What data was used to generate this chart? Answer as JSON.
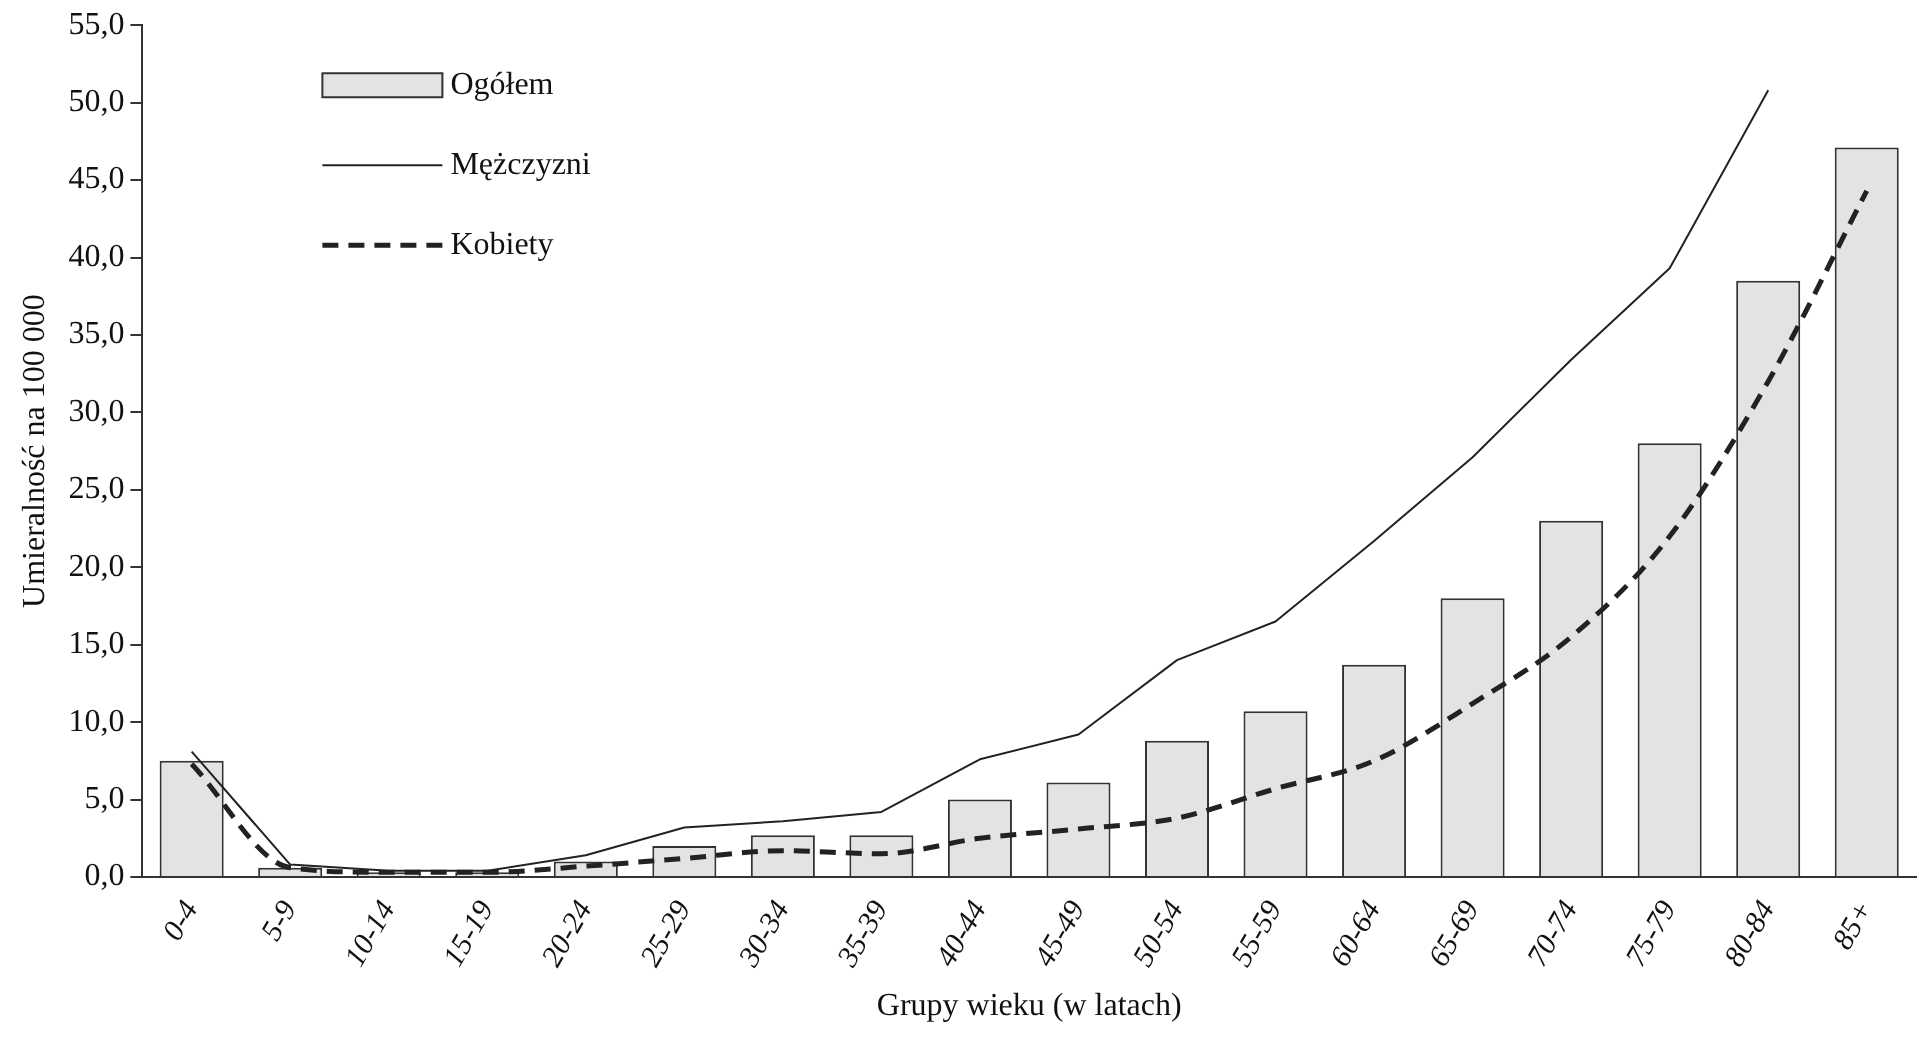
{
  "chart_data": {
    "type": "bar",
    "xlabel": "Grupy wieku (w latach)",
    "ylabel": "Umieralność na 100 000",
    "categories": [
      "0-4",
      "5-9",
      "10-14",
      "15-19",
      "20-24",
      "25-29",
      "30-34",
      "35-39",
      "40-44",
      "45-49",
      "50-54",
      "55-59",
      "60-64",
      "65-69",
      "70-74",
      "75-79",
      "80-84",
      "85+"
    ],
    "series": [
      {
        "name": "Ogółem",
        "color": "#e3e3e3",
        "values": [
          7.5,
          0.6,
          0.3,
          0.3,
          1.0,
          2.0,
          2.7,
          2.7,
          5.0,
          6.1,
          8.8,
          10.7,
          13.7,
          18.0,
          23.0,
          28.0,
          38.5,
          47.1
        ]
      },
      {
        "name": "Mężczyzni",
        "type": "line",
        "line_style": "solid",
        "color": "#222222",
        "values": [
          8.1,
          0.8,
          0.4,
          0.4,
          1.4,
          3.2,
          3.6,
          4.2,
          7.6,
          9.2,
          14.0,
          16.5,
          21.7,
          27.1,
          33.4,
          39.3,
          50.8,
          null
        ]
      },
      {
        "name": "Kobiety",
        "type": "line",
        "line_style": "dashed",
        "color": "#222222",
        "values": [
          7.3,
          0.6,
          0.3,
          0.3,
          0.7,
          1.2,
          1.7,
          1.5,
          2.5,
          3.1,
          3.8,
          5.7,
          7.5,
          11.2,
          15.5,
          22.0,
          32.0,
          44.3
        ]
      }
    ],
    "ylim": [
      0,
      55
    ],
    "yticks": [
      {
        "value": 0,
        "label": "0,0"
      },
      {
        "value": 5,
        "label": "5,0"
      },
      {
        "value": 10,
        "label": "10,0"
      },
      {
        "value": 15,
        "label": "15,0"
      },
      {
        "value": 20,
        "label": "20,0"
      },
      {
        "value": 25,
        "label": "25,0"
      },
      {
        "value": 30,
        "label": "30,0"
      },
      {
        "value": 35,
        "label": "35,0"
      },
      {
        "value": 40,
        "label": "40,0"
      },
      {
        "value": 45,
        "label": "45,0"
      },
      {
        "value": 50,
        "label": "50,0"
      },
      {
        "value": 55,
        "label": "55,0"
      }
    ],
    "grid": false,
    "legend": "top left",
    "marker": "none"
  }
}
